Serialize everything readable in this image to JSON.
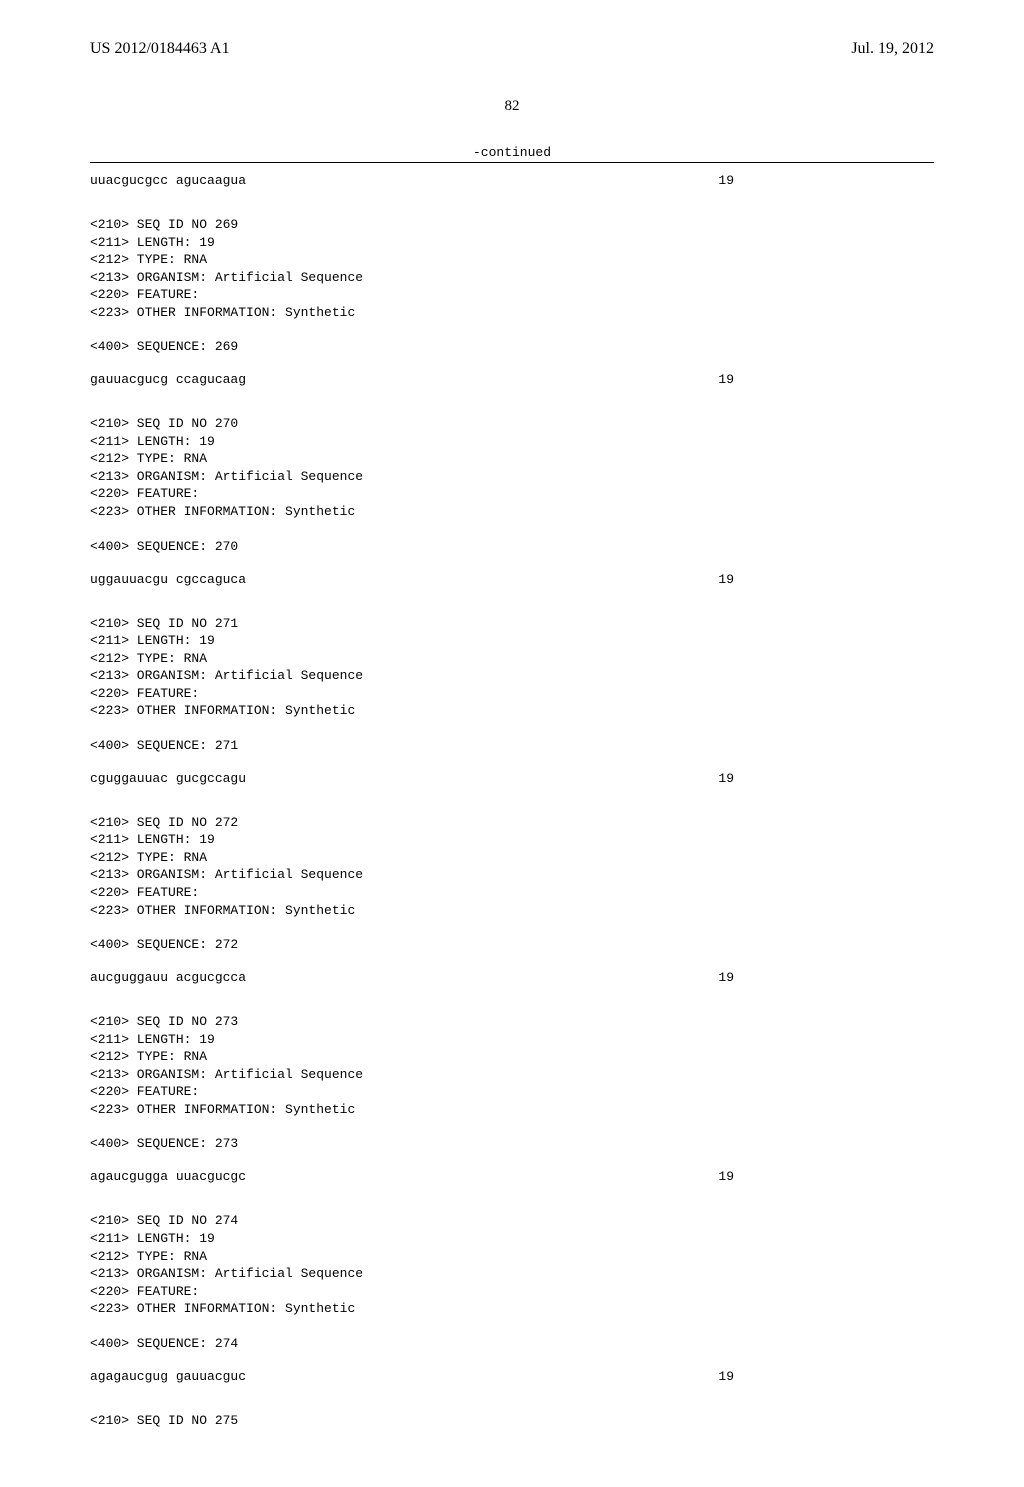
{
  "header": {
    "pub_number": "US 2012/0184463 A1",
    "pub_date": "Jul. 19, 2012"
  },
  "page_number": "82",
  "continued_label": "-continued",
  "top_sequence": {
    "text": "uuacgucgcc agucaagua",
    "length": "19"
  },
  "entries": [
    {
      "id": "269",
      "meta": "<210> SEQ ID NO 269\n<211> LENGTH: 19\n<212> TYPE: RNA\n<213> ORGANISM: Artificial Sequence\n<220> FEATURE:\n<223> OTHER INFORMATION: Synthetic",
      "seq_header": "<400> SEQUENCE: 269",
      "sequence": "gauuacgucg ccagucaag",
      "length": "19"
    },
    {
      "id": "270",
      "meta": "<210> SEQ ID NO 270\n<211> LENGTH: 19\n<212> TYPE: RNA\n<213> ORGANISM: Artificial Sequence\n<220> FEATURE:\n<223> OTHER INFORMATION: Synthetic",
      "seq_header": "<400> SEQUENCE: 270",
      "sequence": "uggauuacgu cgccaguca",
      "length": "19"
    },
    {
      "id": "271",
      "meta": "<210> SEQ ID NO 271\n<211> LENGTH: 19\n<212> TYPE: RNA\n<213> ORGANISM: Artificial Sequence\n<220> FEATURE:\n<223> OTHER INFORMATION: Synthetic",
      "seq_header": "<400> SEQUENCE: 271",
      "sequence": "cguggauuac gucgccagu",
      "length": "19"
    },
    {
      "id": "272",
      "meta": "<210> SEQ ID NO 272\n<211> LENGTH: 19\n<212> TYPE: RNA\n<213> ORGANISM: Artificial Sequence\n<220> FEATURE:\n<223> OTHER INFORMATION: Synthetic",
      "seq_header": "<400> SEQUENCE: 272",
      "sequence": "aucguggauu acgucgcca",
      "length": "19"
    },
    {
      "id": "273",
      "meta": "<210> SEQ ID NO 273\n<211> LENGTH: 19\n<212> TYPE: RNA\n<213> ORGANISM: Artificial Sequence\n<220> FEATURE:\n<223> OTHER INFORMATION: Synthetic",
      "seq_header": "<400> SEQUENCE: 273",
      "sequence": "agaucgugga uuacgucgc",
      "length": "19"
    },
    {
      "id": "274",
      "meta": "<210> SEQ ID NO 274\n<211> LENGTH: 19\n<212> TYPE: RNA\n<213> ORGANISM: Artificial Sequence\n<220> FEATURE:\n<223> OTHER INFORMATION: Synthetic",
      "seq_header": "<400> SEQUENCE: 274",
      "sequence": "agagaucgug gauuacguc",
      "length": "19"
    }
  ],
  "trailing": "<210> SEQ ID NO 275"
}
